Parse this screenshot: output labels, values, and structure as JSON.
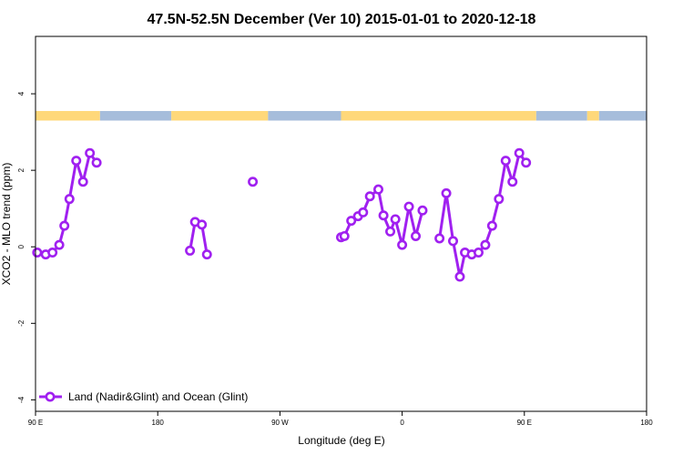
{
  "colors": {
    "series": "#a020f0",
    "land": "#ffd87a",
    "ocean": "#a6bddb",
    "frame": "#000000",
    "background": "#ffffff"
  },
  "chart_data": {
    "type": "line",
    "title": "47.5N-52.5N December (Ver 10)   2015-01-01 to 2020-12-18",
    "xlabel": "Longitude (deg E)",
    "ylabel": "XCO2 - MLO trend (ppm)",
    "xlim": [
      -180,
      180
    ],
    "ylim": [
      -4.3,
      5.5
    ],
    "x_ticks": [
      {
        "value": -180,
        "label": "90 E"
      },
      {
        "value": -108,
        "label": "180"
      },
      {
        "value": -36,
        "label": "90 W"
      },
      {
        "value": 36,
        "label": "0"
      },
      {
        "value": 108,
        "label": "90 E"
      },
      {
        "value": 180,
        "label": "180"
      }
    ],
    "y_ticks": [
      {
        "value": -4,
        "label": "-4"
      },
      {
        "value": -2,
        "label": "-2"
      },
      {
        "value": 0,
        "label": "0"
      },
      {
        "value": 2,
        "label": "2"
      },
      {
        "value": 4,
        "label": "4"
      }
    ],
    "grid": false,
    "legend_position": "bottom-left",
    "series": [
      {
        "name": "Land (Nadir&Glint) and Ocean (Glint)",
        "segments": [
          [
            [
              -179,
              -0.15
            ],
            [
              -174,
              -0.2
            ],
            [
              -170,
              -0.15
            ],
            [
              -166,
              0.05
            ],
            [
              -163,
              0.55
            ],
            [
              -160,
              1.25
            ],
            [
              -156,
              2.25
            ],
            [
              -152,
              1.7
            ],
            [
              -148,
              2.45
            ],
            [
              -144,
              2.2
            ]
          ],
          [
            [
              -89,
              -0.1
            ],
            [
              -86,
              0.65
            ],
            [
              -82,
              0.58
            ],
            [
              -79,
              -0.2
            ]
          ],
          [
            [
              -52,
              1.7
            ]
          ],
          [
            [
              0,
              0.25
            ],
            [
              2,
              0.28
            ],
            [
              6,
              0.68
            ],
            [
              10,
              0.8
            ],
            [
              13,
              0.9
            ],
            [
              17,
              1.32
            ],
            [
              22,
              1.5
            ],
            [
              25,
              0.82
            ],
            [
              29,
              0.4
            ],
            [
              32,
              0.72
            ],
            [
              36,
              0.05
            ],
            [
              40,
              1.05
            ],
            [
              44,
              0.28
            ],
            [
              48,
              0.95
            ]
          ],
          [
            [
              58,
              0.22
            ],
            [
              62,
              1.4
            ],
            [
              66,
              0.15
            ],
            [
              70,
              -0.78
            ],
            [
              73,
              -0.15
            ],
            [
              77,
              -0.2
            ],
            [
              81,
              -0.15
            ],
            [
              85,
              0.05
            ],
            [
              89,
              0.55
            ],
            [
              93,
              1.25
            ],
            [
              97,
              2.25
            ],
            [
              101,
              1.7
            ],
            [
              105,
              2.45
            ],
            [
              109,
              2.2
            ]
          ]
        ]
      }
    ],
    "surface_bar": {
      "y_range": [
        3.3,
        3.55
      ],
      "segments": [
        {
          "type": "land",
          "x": [
            -180,
            -142
          ]
        },
        {
          "type": "ocean",
          "x": [
            -142,
            -100
          ]
        },
        {
          "type": "land",
          "x": [
            -100,
            -43
          ]
        },
        {
          "type": "ocean",
          "x": [
            -43,
            0
          ]
        },
        {
          "type": "land",
          "x": [
            0,
            115
          ]
        },
        {
          "type": "ocean",
          "x": [
            115,
            145
          ]
        },
        {
          "type": "land",
          "x": [
            145,
            152
          ]
        },
        {
          "type": "ocean",
          "x": [
            152,
            180
          ]
        }
      ]
    }
  }
}
